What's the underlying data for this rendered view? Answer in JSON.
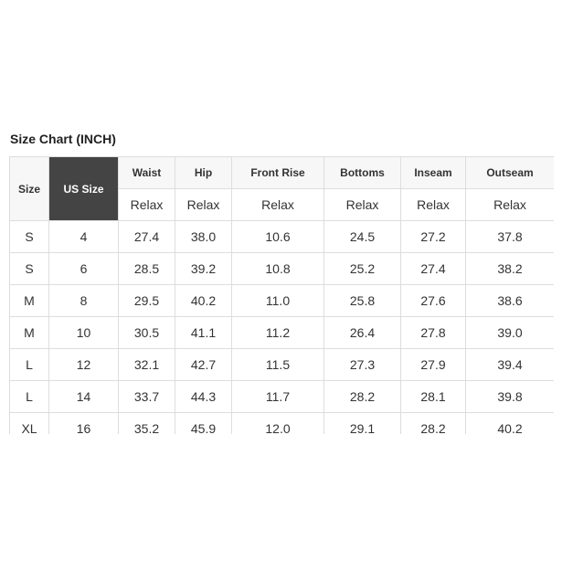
{
  "title": "Size Chart (INCH)",
  "headers": {
    "size": "Size",
    "us_size": "US Size",
    "cols": [
      "Waist",
      "Hip",
      "Front Rise",
      "Bottoms",
      "Inseam",
      "Outseam"
    ]
  },
  "sub": [
    "Relax",
    "Relax",
    "Relax",
    "Relax",
    "Relax",
    "Relax"
  ],
  "rows": [
    [
      "S",
      "4",
      "27.4",
      "38.0",
      "10.6",
      "24.5",
      "27.2",
      "37.8"
    ],
    [
      "S",
      "6",
      "28.5",
      "39.2",
      "10.8",
      "25.2",
      "27.4",
      "38.2"
    ],
    [
      "M",
      "8",
      "29.5",
      "40.2",
      "11.0",
      "25.8",
      "27.6",
      "38.6"
    ],
    [
      "M",
      "10",
      "30.5",
      "41.1",
      "11.2",
      "26.4",
      "27.8",
      "39.0"
    ],
    [
      "L",
      "12",
      "32.1",
      "42.7",
      "11.5",
      "27.3",
      "27.9",
      "39.4"
    ],
    [
      "L",
      "14",
      "33.7",
      "44.3",
      "11.7",
      "28.2",
      "28.1",
      "39.8"
    ],
    [
      "XL",
      "16",
      "35.2",
      "45.9",
      "12.0",
      "29.1",
      "28.2",
      "40.2"
    ]
  ],
  "colors": {
    "header_dark": "#444444",
    "header_bg": "#f7f7f7",
    "border": "#dddddd"
  }
}
